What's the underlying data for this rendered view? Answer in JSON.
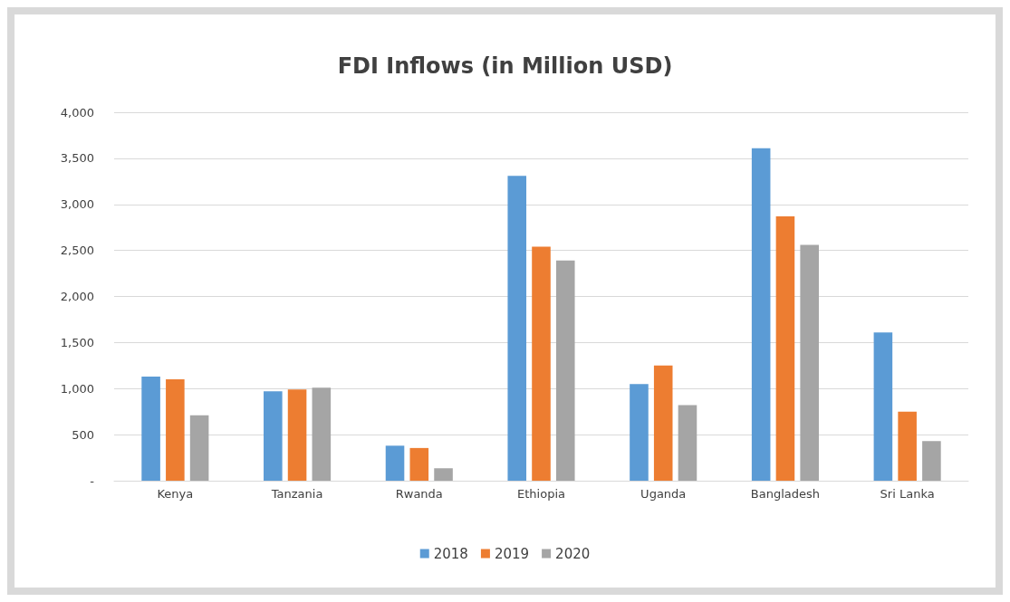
{
  "chart_data": {
    "type": "bar",
    "title": "FDI Inflows (in Million USD)",
    "categories": [
      "Kenya",
      "Tanzania",
      "Rwanda",
      "Ethiopia",
      "Uganda",
      "Bangladesh",
      "Sri Lanka"
    ],
    "series": [
      {
        "name": "2018",
        "color": "#5b9bd5",
        "values": [
          1130,
          970,
          380,
          3310,
          1050,
          3610,
          1610
        ]
      },
      {
        "name": "2019",
        "color": "#ed7d31",
        "values": [
          1100,
          990,
          355,
          2540,
          1250,
          2870,
          750
        ]
      },
      {
        "name": "2020",
        "color": "#a5a5a5",
        "values": [
          710,
          1010,
          135,
          2390,
          820,
          2560,
          430
        ]
      }
    ],
    "ylim": [
      0,
      4000
    ],
    "yticks": [
      {
        "value": 0,
        "label": "-"
      },
      {
        "value": 500,
        "label": "500"
      },
      {
        "value": 1000,
        "label": "1,000"
      },
      {
        "value": 1500,
        "label": "1,500"
      },
      {
        "value": 2000,
        "label": "2,000"
      },
      {
        "value": 2500,
        "label": "2,500"
      },
      {
        "value": 3000,
        "label": "3,000"
      },
      {
        "value": 3500,
        "label": "3,500"
      },
      {
        "value": 4000,
        "label": "4,000"
      }
    ],
    "grid": "y",
    "legend": "bottom"
  }
}
